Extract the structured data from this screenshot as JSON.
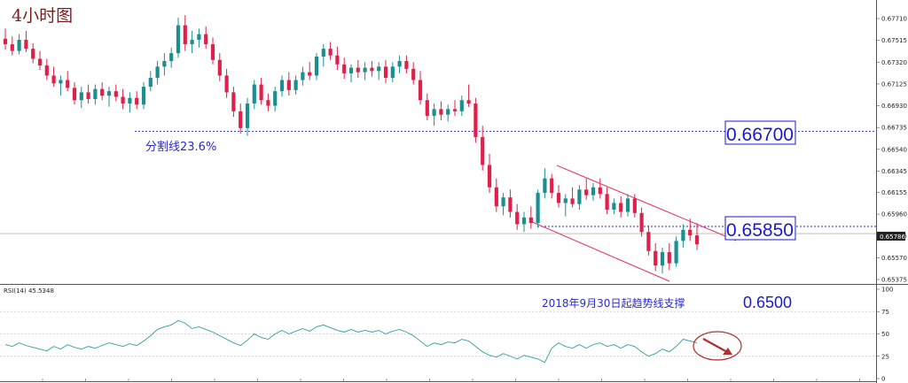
{
  "header": {
    "timeframe_label": "4小时图"
  },
  "rsi": {
    "label": "RSI(14) 45.5348",
    "axis": [
      "100",
      "75",
      "50",
      "25",
      "0"
    ],
    "levels": [
      100,
      75,
      50,
      25,
      0
    ]
  },
  "price_axis": {
    "ticks": [
      "0.67710",
      "0.67515",
      "0.67320",
      "0.67125",
      "0.66930",
      "0.66735",
      "0.66540",
      "0.66345",
      "0.66155",
      "0.65960",
      "0.65765",
      "0.65570",
      "0.65375"
    ],
    "current": "0.65786"
  },
  "annotations": {
    "fib": {
      "label": "分割线23.6%",
      "price": 0.667
    },
    "level_high": {
      "label": "0.66700",
      "price": 0.667
    },
    "level_low": {
      "label": "0.65850",
      "price": 0.6585
    },
    "support": {
      "label": "2018年9月30日起趋势线支撑",
      "value": "0.6500"
    }
  },
  "colors": {
    "bull": "#1b8f8f",
    "bear": "#e0204a",
    "channel": "#e8305a",
    "dashed": "#2a2acc",
    "rsi_line": "#2e9e9e",
    "label_text": "#1a1acc",
    "arrow": "#b03030"
  },
  "chart_data": {
    "type": "candlestick",
    "title": "4小时图",
    "ylim": [
      0.65375,
      0.6771
    ],
    "y_ticks": [
      0.6771,
      0.67515,
      0.6732,
      0.67125,
      0.6693,
      0.66735,
      0.6654,
      0.66345,
      0.66155,
      0.6596,
      0.65765,
      0.6557,
      0.65375
    ],
    "current_price": 0.65786,
    "ohlc": [
      [
        0.6753,
        0.6762,
        0.6743,
        0.6748
      ],
      [
        0.6748,
        0.6755,
        0.6738,
        0.6742
      ],
      [
        0.6742,
        0.6757,
        0.6739,
        0.6752
      ],
      [
        0.6752,
        0.676,
        0.6741,
        0.6744
      ],
      [
        0.6744,
        0.6749,
        0.6731,
        0.6735
      ],
      [
        0.6735,
        0.6742,
        0.6725,
        0.6729
      ],
      [
        0.6729,
        0.6735,
        0.6716,
        0.672
      ],
      [
        0.672,
        0.6728,
        0.671,
        0.6713
      ],
      [
        0.6713,
        0.672,
        0.6702,
        0.6716
      ],
      [
        0.6716,
        0.6724,
        0.6706,
        0.6709
      ],
      [
        0.6709,
        0.6714,
        0.6694,
        0.6698
      ],
      [
        0.6698,
        0.671,
        0.6691,
        0.6705
      ],
      [
        0.6705,
        0.6712,
        0.6695,
        0.6699
      ],
      [
        0.6699,
        0.6712,
        0.6694,
        0.6708
      ],
      [
        0.6708,
        0.6714,
        0.6698,
        0.6702
      ],
      [
        0.6702,
        0.671,
        0.6692,
        0.6706
      ],
      [
        0.6706,
        0.6712,
        0.6697,
        0.6701
      ],
      [
        0.6701,
        0.6708,
        0.669,
        0.6695
      ],
      [
        0.6695,
        0.6705,
        0.6687,
        0.67
      ],
      [
        0.67,
        0.6706,
        0.669,
        0.6694
      ],
      [
        0.6694,
        0.6714,
        0.669,
        0.671
      ],
      [
        0.671,
        0.6724,
        0.6706,
        0.6718
      ],
      [
        0.6718,
        0.6733,
        0.6712,
        0.6728
      ],
      [
        0.6728,
        0.674,
        0.672,
        0.6733
      ],
      [
        0.6733,
        0.6745,
        0.6727,
        0.674
      ],
      [
        0.674,
        0.6772,
        0.6736,
        0.6765
      ],
      [
        0.6765,
        0.6774,
        0.6742,
        0.6748
      ],
      [
        0.6748,
        0.676,
        0.674,
        0.6752
      ],
      [
        0.6752,
        0.6762,
        0.6745,
        0.6757
      ],
      [
        0.6757,
        0.6764,
        0.6744,
        0.6748
      ],
      [
        0.6748,
        0.6754,
        0.673,
        0.6734
      ],
      [
        0.6734,
        0.674,
        0.6715,
        0.672
      ],
      [
        0.672,
        0.6726,
        0.67,
        0.6705
      ],
      [
        0.6705,
        0.671,
        0.6683,
        0.6688
      ],
      [
        0.6688,
        0.6695,
        0.6668,
        0.6673
      ],
      [
        0.6673,
        0.67,
        0.6666,
        0.6695
      ],
      [
        0.6695,
        0.6716,
        0.669,
        0.6712
      ],
      [
        0.6712,
        0.6718,
        0.6694,
        0.6698
      ],
      [
        0.6698,
        0.6704,
        0.6688,
        0.6693
      ],
      [
        0.6693,
        0.671,
        0.6688,
        0.6706
      ],
      [
        0.6706,
        0.672,
        0.6701,
        0.6716
      ],
      [
        0.6716,
        0.6723,
        0.6702,
        0.6707
      ],
      [
        0.6707,
        0.672,
        0.6703,
        0.6716
      ],
      [
        0.6716,
        0.6728,
        0.6711,
        0.6723
      ],
      [
        0.6723,
        0.6732,
        0.6716,
        0.672
      ],
      [
        0.672,
        0.674,
        0.6716,
        0.6737
      ],
      [
        0.6737,
        0.6748,
        0.6728,
        0.6744
      ],
      [
        0.6744,
        0.675,
        0.6734,
        0.6738
      ],
      [
        0.6738,
        0.6746,
        0.6725,
        0.673
      ],
      [
        0.673,
        0.6736,
        0.6717,
        0.6722
      ],
      [
        0.6722,
        0.673,
        0.6714,
        0.6727
      ],
      [
        0.6727,
        0.6734,
        0.6718,
        0.6723
      ],
      [
        0.6723,
        0.6732,
        0.6716,
        0.6727
      ],
      [
        0.6727,
        0.6733,
        0.6719,
        0.6724
      ],
      [
        0.6724,
        0.6732,
        0.6716,
        0.6728
      ],
      [
        0.6728,
        0.6734,
        0.6713,
        0.6718
      ],
      [
        0.6718,
        0.6732,
        0.6714,
        0.6728
      ],
      [
        0.6728,
        0.6738,
        0.6722,
        0.6733
      ],
      [
        0.6733,
        0.6738,
        0.6722,
        0.6726
      ],
      [
        0.6726,
        0.6732,
        0.6712,
        0.6716
      ],
      [
        0.6716,
        0.6724,
        0.6694,
        0.6698
      ],
      [
        0.6698,
        0.6704,
        0.668,
        0.6684
      ],
      [
        0.6684,
        0.6695,
        0.6675,
        0.669
      ],
      [
        0.669,
        0.6697,
        0.668,
        0.6685
      ],
      [
        0.6685,
        0.6694,
        0.6679,
        0.669
      ],
      [
        0.669,
        0.6698,
        0.6684,
        0.6688
      ],
      [
        0.6688,
        0.6702,
        0.6684,
        0.6698
      ],
      [
        0.6698,
        0.6712,
        0.6692,
        0.6695
      ],
      [
        0.6695,
        0.67,
        0.666,
        0.6665
      ],
      [
        0.6665,
        0.6675,
        0.6635,
        0.664
      ],
      [
        0.664,
        0.665,
        0.6615,
        0.662
      ],
      [
        0.662,
        0.6628,
        0.6598,
        0.6603
      ],
      [
        0.6603,
        0.6615,
        0.6595,
        0.6611
      ],
      [
        0.6611,
        0.6618,
        0.6593,
        0.6598
      ],
      [
        0.6598,
        0.6605,
        0.6582,
        0.6587
      ],
      [
        0.6587,
        0.6598,
        0.658,
        0.6593
      ],
      [
        0.6593,
        0.6603,
        0.6583,
        0.6588
      ],
      [
        0.6588,
        0.6618,
        0.6584,
        0.6615
      ],
      [
        0.6615,
        0.6637,
        0.661,
        0.6628
      ],
      [
        0.6628,
        0.6632,
        0.661,
        0.6615
      ],
      [
        0.6615,
        0.6622,
        0.6602,
        0.6606
      ],
      [
        0.6606,
        0.6614,
        0.6594,
        0.661
      ],
      [
        0.661,
        0.662,
        0.6602,
        0.6605
      ],
      [
        0.6605,
        0.6622,
        0.66,
        0.6618
      ],
      [
        0.6618,
        0.6628,
        0.6609,
        0.6613
      ],
      [
        0.6613,
        0.6624,
        0.6608,
        0.662
      ],
      [
        0.662,
        0.6628,
        0.661,
        0.6614
      ],
      [
        0.6614,
        0.662,
        0.6596,
        0.66
      ],
      [
        0.66,
        0.661,
        0.6596,
        0.6606
      ],
      [
        0.6606,
        0.6612,
        0.6593,
        0.6598
      ],
      [
        0.6598,
        0.6614,
        0.6594,
        0.661
      ],
      [
        0.661,
        0.6614,
        0.6593,
        0.6597
      ],
      [
        0.6597,
        0.6602,
        0.6576,
        0.658
      ],
      [
        0.658,
        0.6586,
        0.6559,
        0.6563
      ],
      [
        0.6563,
        0.657,
        0.6545,
        0.655
      ],
      [
        0.655,
        0.6566,
        0.6543,
        0.6562
      ],
      [
        0.6562,
        0.657,
        0.6546,
        0.6552
      ],
      [
        0.6552,
        0.6576,
        0.6549,
        0.6572
      ],
      [
        0.6572,
        0.6587,
        0.6566,
        0.6582
      ],
      [
        0.6582,
        0.6592,
        0.6572,
        0.6577
      ],
      [
        0.6577,
        0.6588,
        0.6564,
        0.6569
      ]
    ],
    "rsi": [
      38,
      36,
      40,
      37,
      35,
      33,
      31,
      36,
      33,
      38,
      35,
      33,
      36,
      34,
      37,
      40,
      38,
      36,
      39,
      37,
      42,
      48,
      55,
      58,
      60,
      65,
      62,
      56,
      58,
      55,
      52,
      48,
      44,
      40,
      37,
      43,
      50,
      46,
      44,
      50,
      54,
      50,
      53,
      56,
      53,
      58,
      60,
      57,
      54,
      52,
      55,
      52,
      54,
      52,
      54,
      50,
      53,
      55,
      52,
      48,
      42,
      36,
      40,
      38,
      41,
      40,
      44,
      42,
      36,
      30,
      26,
      24,
      28,
      25,
      22,
      26,
      24,
      22,
      18,
      34,
      40,
      36,
      34,
      38,
      34,
      38,
      40,
      36,
      38,
      34,
      38,
      36,
      30,
      25,
      28,
      33,
      30,
      36,
      44,
      42,
      40
    ],
    "rsi_current": 45.5348,
    "horizontal_levels": [
      {
        "label": "0.66700",
        "value": 0.667
      },
      {
        "label": "0.65850",
        "value": 0.6585
      }
    ],
    "annotations": [
      "分割线23.6%",
      "2018年9月30日起趋势线支撑",
      "0.6500"
    ]
  }
}
